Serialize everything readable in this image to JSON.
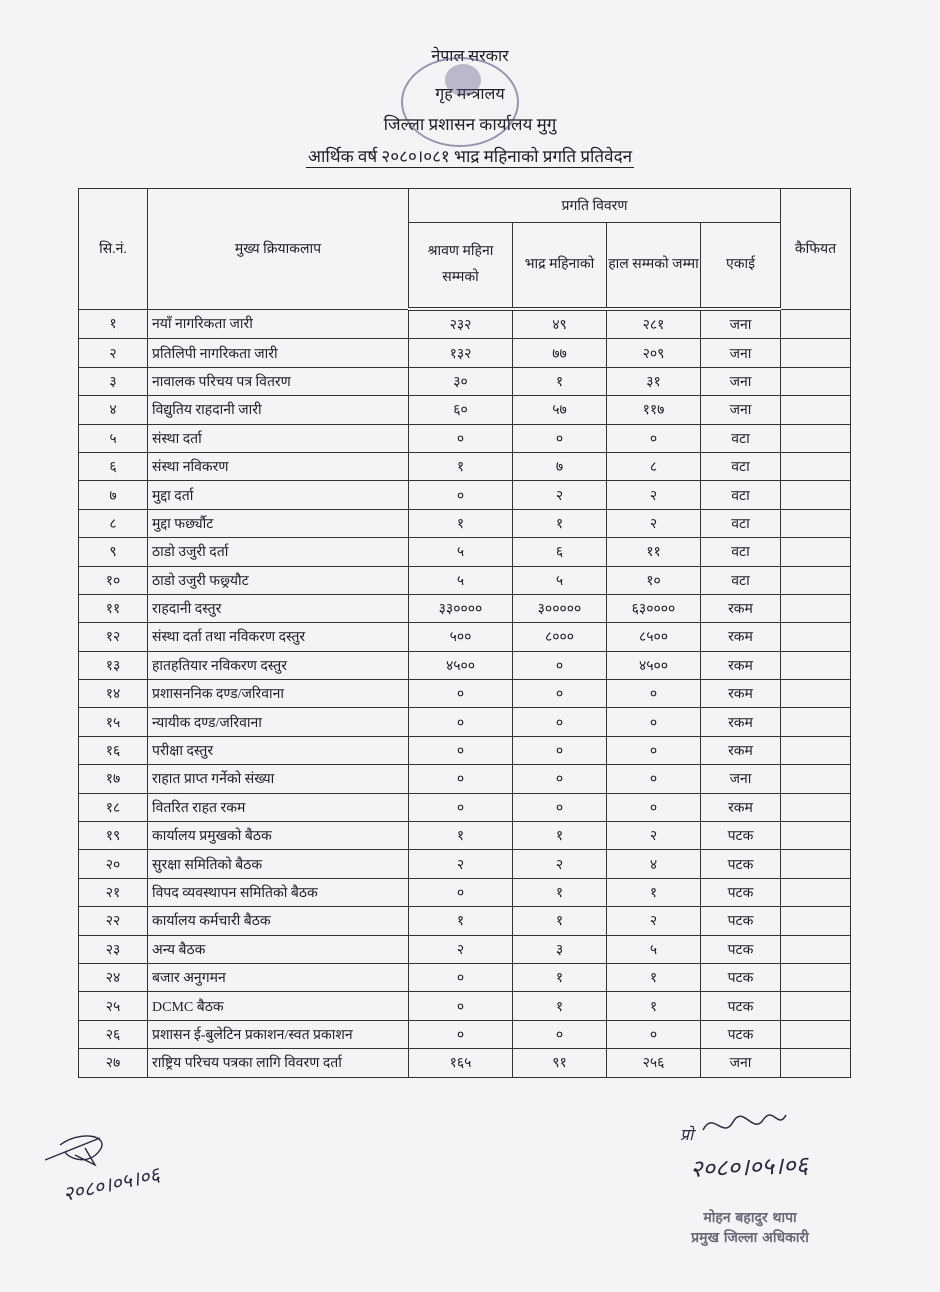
{
  "header": {
    "government": "नेपाल सरकार",
    "ministry": "गृह मन्त्रालय",
    "office": "जिल्ला प्रशासन कार्यालय मुगु",
    "report_title": "आर्थिक वर्ष २०८०।०८१ भाद्र महिनाको प्रगति प्रतिवेदन"
  },
  "seal": {
    "text": "जिल्ला प्रशासन कार्यालय मुगु नेपाल सरकार"
  },
  "table": {
    "columns": {
      "sn": "सि.नं.",
      "activity": "मुख्य क्रियाकलाप",
      "progress_group": "प्रगति विवरण",
      "shrawan": "श्रावण महिना सम्मको",
      "bhadra": "भाद्र महिनाको",
      "total": "हाल सम्मको जम्मा",
      "unit": "एकाई",
      "remarks": "कैफियत"
    },
    "rows": [
      {
        "sn": "१",
        "activity": "नयाँ नागरिकता जारी",
        "shrawan": "२३२",
        "bhadra": "४९",
        "total": "२८१",
        "unit": "जना",
        "remarks": ""
      },
      {
        "sn": "२",
        "activity": "प्रतिलिपी नागरिकता जारी",
        "shrawan": "१३२",
        "bhadra": "७७",
        "total": "२०९",
        "unit": "जना",
        "remarks": ""
      },
      {
        "sn": "३",
        "activity": "नावालक परिचय पत्र वितरण",
        "shrawan": "३०",
        "bhadra": "१",
        "total": "३१",
        "unit": "जना",
        "remarks": ""
      },
      {
        "sn": "४",
        "activity": "विद्युतिय राहदानी जारी",
        "shrawan": "६०",
        "bhadra": "५७",
        "total": "११७",
        "unit": "जना",
        "remarks": ""
      },
      {
        "sn": "५",
        "activity": "संस्था दर्ता",
        "shrawan": "०",
        "bhadra": "०",
        "total": "०",
        "unit": "वटा",
        "remarks": ""
      },
      {
        "sn": "६",
        "activity": "संस्था नविकरण",
        "shrawan": "१",
        "bhadra": "७",
        "total": "८",
        "unit": "वटा",
        "remarks": ""
      },
      {
        "sn": "७",
        "activity": "मुद्दा दर्ता",
        "shrawan": "०",
        "bhadra": "२",
        "total": "२",
        "unit": "वटा",
        "remarks": ""
      },
      {
        "sn": "८",
        "activity": "मुद्दा फर्छ्यौट",
        "shrawan": "१",
        "bhadra": "१",
        "total": "२",
        "unit": "वटा",
        "remarks": ""
      },
      {
        "sn": "९",
        "activity": "ठाडो उजुरी दर्ता",
        "shrawan": "५",
        "bhadra": "६",
        "total": "११",
        "unit": "वटा",
        "remarks": ""
      },
      {
        "sn": "१०",
        "activity": "ठाडो उजुरी फछ्र्यौट",
        "shrawan": "५",
        "bhadra": "५",
        "total": "१०",
        "unit": "वटा",
        "remarks": ""
      },
      {
        "sn": "११",
        "activity": "राहदानी दस्तुर",
        "shrawan": "३३००००",
        "bhadra": "३०००००",
        "total": "६३००००",
        "unit": "रकम",
        "remarks": ""
      },
      {
        "sn": "१२",
        "activity": "संस्था दर्ता तथा नविकरण दस्तुर",
        "shrawan": "५००",
        "bhadra": "८०००",
        "total": "८५००",
        "unit": "रकम",
        "remarks": ""
      },
      {
        "sn": "१३",
        "activity": "हातहतियार नविकरण दस्तुर",
        "shrawan": "४५००",
        "bhadra": "०",
        "total": "४५००",
        "unit": "रकम",
        "remarks": ""
      },
      {
        "sn": "१४",
        "activity": "प्रशासननिक दण्ड/जरिवाना",
        "shrawan": "०",
        "bhadra": "०",
        "total": "०",
        "unit": "रकम",
        "remarks": ""
      },
      {
        "sn": "१५",
        "activity": "न्यायीक दण्ड/जरिवाना",
        "shrawan": "०",
        "bhadra": "०",
        "total": "०",
        "unit": "रकम",
        "remarks": ""
      },
      {
        "sn": "१६",
        "activity": "परीक्षा दस्तुर",
        "shrawan": "०",
        "bhadra": "०",
        "total": "०",
        "unit": "रकम",
        "remarks": ""
      },
      {
        "sn": "१७",
        "activity": "राहात प्राप्त गर्नेको संख्या",
        "shrawan": "०",
        "bhadra": "०",
        "total": "०",
        "unit": "जना",
        "remarks": ""
      },
      {
        "sn": "१८",
        "activity": "वितरित राहत रकम",
        "shrawan": "०",
        "bhadra": "०",
        "total": "०",
        "unit": "रकम",
        "remarks": ""
      },
      {
        "sn": "१९",
        "activity": "कार्यालय प्रमुखको बैठक",
        "shrawan": "१",
        "bhadra": "१",
        "total": "२",
        "unit": "पटक",
        "remarks": ""
      },
      {
        "sn": "२०",
        "activity": "सुरक्षा समितिको बैठक",
        "shrawan": "२",
        "bhadra": "२",
        "total": "४",
        "unit": "पटक",
        "remarks": ""
      },
      {
        "sn": "२१",
        "activity": "विपद व्यवस्थापन समितिको बैठक",
        "shrawan": "०",
        "bhadra": "१",
        "total": "१",
        "unit": "पटक",
        "remarks": ""
      },
      {
        "sn": "२२",
        "activity": "कार्यालय कर्मचारी बैठक",
        "shrawan": "१",
        "bhadra": "१",
        "total": "२",
        "unit": "पटक",
        "remarks": ""
      },
      {
        "sn": "२३",
        "activity": "अन्य बैठक",
        "shrawan": "२",
        "bhadra": "३",
        "total": "५",
        "unit": "पटक",
        "remarks": ""
      },
      {
        "sn": "२४",
        "activity": "बजार अनुगमन",
        "shrawan": "०",
        "bhadra": "१",
        "total": "१",
        "unit": "पटक",
        "remarks": ""
      },
      {
        "sn": "२५",
        "activity": "DCMC बैठक",
        "shrawan": "०",
        "bhadra": "१",
        "total": "१",
        "unit": "पटक",
        "remarks": ""
      },
      {
        "sn": "२६",
        "activity": "प्रशासन ई-बुलेटिन प्रकाशन/स्वत प्रकाशन",
        "shrawan": "०",
        "bhadra": "०",
        "total": "०",
        "unit": "पटक",
        "remarks": ""
      },
      {
        "sn": "२७",
        "activity": "राष्ट्रिय परिचय पत्रका लागि विवरण दर्ता",
        "shrawan": "१६५",
        "bhadra": "९१",
        "total": "२५६",
        "unit": "जना",
        "remarks": ""
      }
    ]
  },
  "signatures": {
    "left_date": "२०८०।०५।०६",
    "right_prefix": "प्रो",
    "right_date": "२०८०।०५।०६"
  },
  "officer": {
    "name": "मोहन बहादुर थापा",
    "title": "प्रमुख जिल्ला अधिकारी"
  }
}
